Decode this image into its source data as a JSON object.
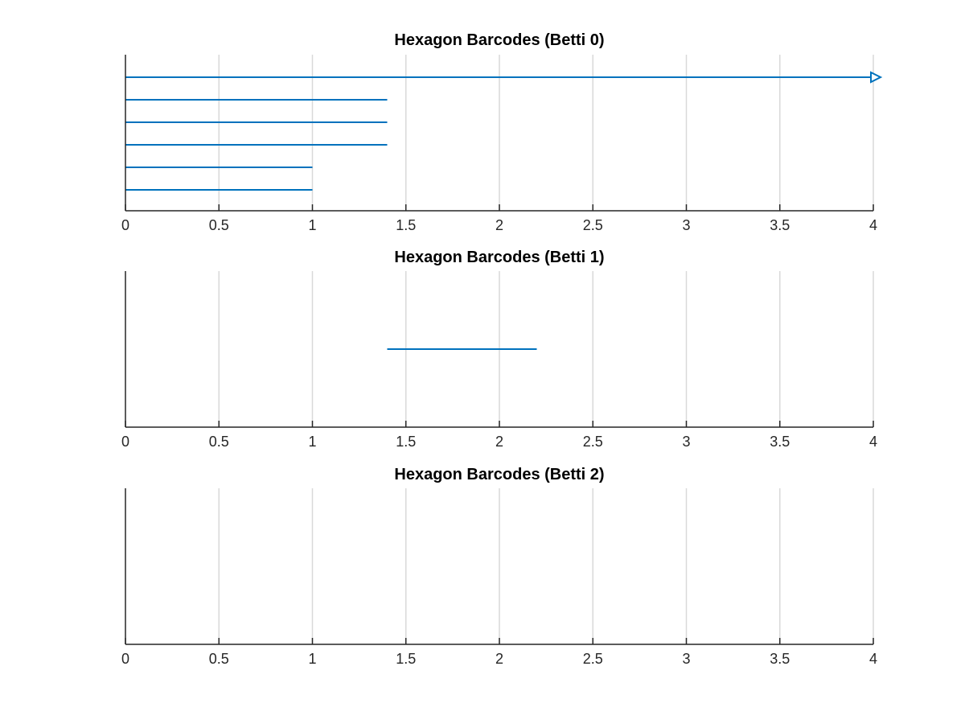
{
  "colors": {
    "bar": "#0072BD",
    "grid": "#d9d9d9",
    "axis": "#262626",
    "background": "#ffffff"
  },
  "chart_data": [
    {
      "type": "barcode",
      "title": "Hexagon Barcodes (Betti 0)",
      "xlabel": "",
      "ylabel": "",
      "xlim": [
        0,
        4
      ],
      "xticks": [
        0,
        0.5,
        1,
        1.5,
        2,
        2.5,
        3,
        3.5,
        4
      ],
      "xtick_labels": [
        "0",
        "0.5",
        "1",
        "1.5",
        "2",
        "2.5",
        "3",
        "3.5",
        "4"
      ],
      "grid": "vertical",
      "intervals": [
        {
          "start": 0,
          "end": 4,
          "infinite": true
        },
        {
          "start": 0,
          "end": 1.4,
          "infinite": false
        },
        {
          "start": 0,
          "end": 1.4,
          "infinite": false
        },
        {
          "start": 0,
          "end": 1.4,
          "infinite": false
        },
        {
          "start": 0,
          "end": 1.0,
          "infinite": false
        },
        {
          "start": 0,
          "end": 1.0,
          "infinite": false
        }
      ]
    },
    {
      "type": "barcode",
      "title": "Hexagon Barcodes (Betti 1)",
      "xlabel": "",
      "ylabel": "",
      "xlim": [
        0,
        4
      ],
      "xticks": [
        0,
        0.5,
        1,
        1.5,
        2,
        2.5,
        3,
        3.5,
        4
      ],
      "xtick_labels": [
        "0",
        "0.5",
        "1",
        "1.5",
        "2",
        "2.5",
        "3",
        "3.5",
        "4"
      ],
      "grid": "vertical",
      "intervals": [
        {
          "start": 1.4,
          "end": 2.2,
          "infinite": false
        }
      ]
    },
    {
      "type": "barcode",
      "title": "Hexagon Barcodes (Betti 2)",
      "xlabel": "",
      "ylabel": "",
      "xlim": [
        0,
        4
      ],
      "xticks": [
        0,
        0.5,
        1,
        1.5,
        2,
        2.5,
        3,
        3.5,
        4
      ],
      "xtick_labels": [
        "0",
        "0.5",
        "1",
        "1.5",
        "2",
        "2.5",
        "3",
        "3.5",
        "4"
      ],
      "grid": "vertical",
      "intervals": []
    }
  ]
}
